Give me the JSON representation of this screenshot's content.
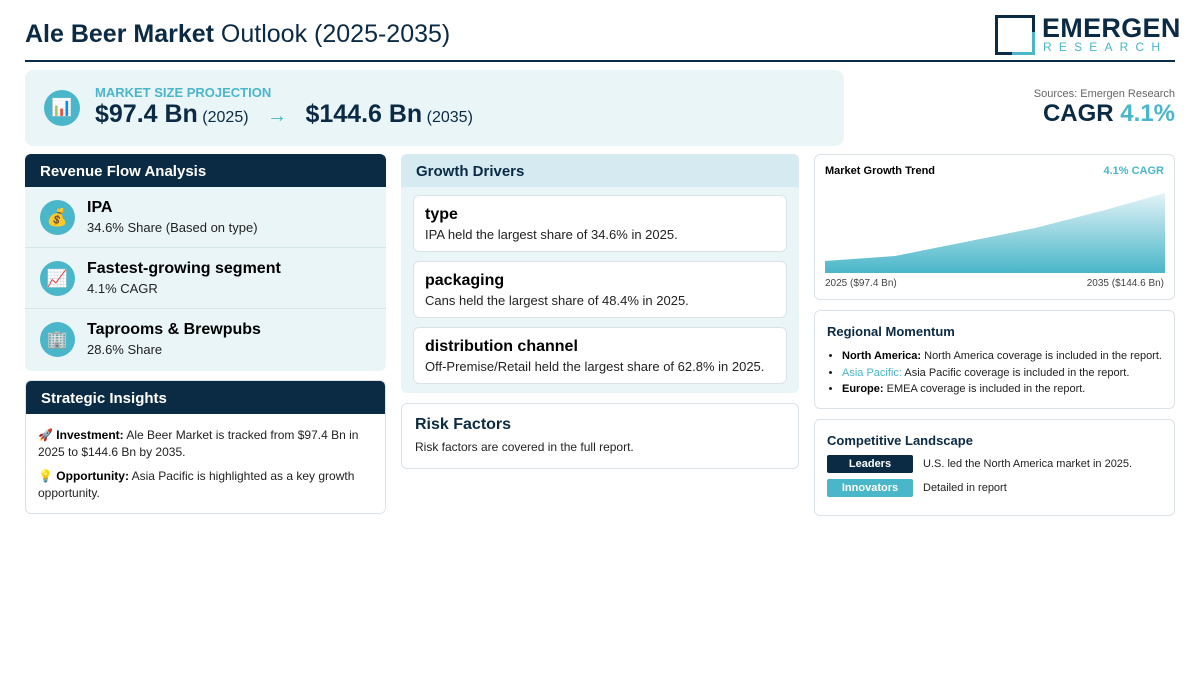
{
  "header": {
    "title_bold": "Ale Beer Market",
    "title_rest": " Outlook (2025-2035)",
    "logo_main": "EMERGEN",
    "logo_sub": "RESEARCH"
  },
  "projection": {
    "label": "MARKET SIZE PROJECTION",
    "icon": "bar-chart-icon",
    "start_value": "$97.4 Bn",
    "start_year": "(2025)",
    "arrow": "→",
    "end_value": "$144.6 Bn",
    "end_year": "(2035)"
  },
  "sources": "Sources: Emergen Research",
  "cagr": {
    "label": "CAGR",
    "value": "4.1%"
  },
  "revenue_flow": {
    "title": "Revenue Flow Analysis",
    "items": [
      {
        "icon": "money-bag-icon",
        "glyph": "💰",
        "title": "IPA",
        "subtitle": "34.6% Share (Based on type)"
      },
      {
        "icon": "trend-chart-icon",
        "glyph": "📈",
        "title": "Fastest-growing segment",
        "subtitle": "4.1% CAGR"
      },
      {
        "icon": "building-icon",
        "glyph": "🏢",
        "title": "Taprooms & Brewpubs",
        "subtitle": "28.6% Share"
      }
    ]
  },
  "strategic_insights": {
    "title": "Strategic Insights",
    "items": [
      {
        "glyph": "🚀",
        "label": "Investment:",
        "text": " Ale Beer Market is tracked from $97.4 Bn in 2025 to $144.6 Bn by 2035."
      },
      {
        "glyph": "💡",
        "label": "Opportunity:",
        "text": " Asia Pacific is highlighted as a key growth opportunity."
      }
    ]
  },
  "growth_drivers": {
    "title": "Growth Drivers",
    "items": [
      {
        "title": "type",
        "text": "IPA held the largest share of 34.6% in 2025."
      },
      {
        "title": "packaging",
        "text": "Cans held the largest share of 48.4% in 2025."
      },
      {
        "title": "distribution channel",
        "text": "Off-Premise/Retail held the largest share of 62.8% in 2025."
      }
    ]
  },
  "risk_factors": {
    "title": "Risk Factors",
    "text": "Risk factors are covered in the full report."
  },
  "growth_trend": {
    "title": "Market Growth Trend",
    "cagr_label": "4.1% CAGR",
    "start_label": "2025 ($97.4 Bn)",
    "end_label": "2035 ($144.6 Bn)",
    "colors": {
      "fill_top": "#e3f3f7",
      "fill_bottom": "#49b6c9"
    }
  },
  "regional_momentum": {
    "title": "Regional Momentum",
    "items": [
      {
        "region": "North America:",
        "text": " North America coverage is included in the report.",
        "accent": false
      },
      {
        "region": "Asia Pacific:",
        "text": " Asia Pacific coverage is included in the report.",
        "accent": true
      },
      {
        "region": "Europe:",
        "text": " EMEA coverage is included in the report.",
        "accent": false
      }
    ]
  },
  "competitive_landscape": {
    "title": "Competitive Landscape",
    "rows": [
      {
        "badge": "Leaders",
        "text": "U.S. led the North America market in 2025.",
        "color": "#0b2a43"
      },
      {
        "badge": "Innovators",
        "text": "Detailed in report",
        "color": "#49b6c9"
      }
    ]
  },
  "colors": {
    "navy": "#0b2a43",
    "teal": "#49b6c9",
    "panel": "#eaf5f8"
  }
}
